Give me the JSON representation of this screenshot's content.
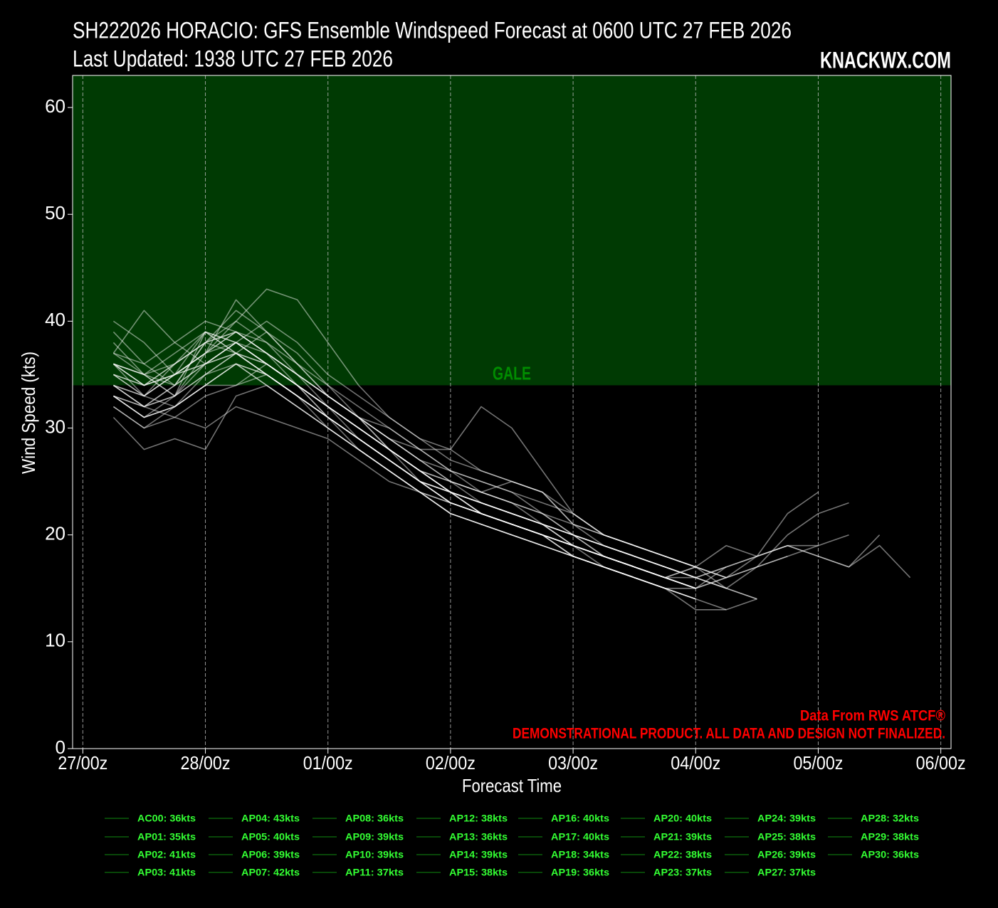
{
  "chart_data": {
    "type": "line",
    "title": "SH222026 HORACIO: GFS Ensemble Windspeed Forecast at 0600 UTC 27 FEB 2026",
    "subtitle": "Last Updated: 1938 UTC 27 FEB 2026",
    "brand": "KNACKWX.COM",
    "xlabel": "Forecast Time",
    "ylabel": "Wind Speed (kts)",
    "threshold": {
      "value": 34,
      "label": "GALE",
      "color": "#003a03",
      "label_color": "#008c00"
    },
    "source_note": "Data From RWS ATCF®",
    "disclaimer": "DEMONSTRATIONAL PRODUCT. ALL DATA AND DESIGN NOT FINALIZED.",
    "note_color": "#ff0000",
    "line_color": "#ffffff",
    "legend_handle_color": "#0b5e0b",
    "legend_text_color": "#33ff33",
    "grid": true,
    "xlim": [
      -2,
      170
    ],
    "ylim": [
      0,
      63
    ],
    "yticks": [
      0,
      10,
      20,
      30,
      40,
      50,
      60
    ],
    "xticks": [
      {
        "value": 0,
        "label": "27/00z"
      },
      {
        "value": 24,
        "label": "28/00z"
      },
      {
        "value": 48,
        "label": "01/00z"
      },
      {
        "value": 72,
        "label": "02/00z"
      },
      {
        "value": 96,
        "label": "03/00z"
      },
      {
        "value": 120,
        "label": "04/00z"
      },
      {
        "value": 144,
        "label": "05/00z"
      },
      {
        "value": 168,
        "label": "06/00z"
      }
    ],
    "x": [
      6,
      12,
      18,
      24,
      30,
      36,
      42,
      48,
      54,
      60,
      66,
      72,
      78,
      84,
      90,
      96,
      102,
      108,
      114,
      120,
      126,
      132,
      138,
      144,
      150,
      156,
      162
    ],
    "series": [
      {
        "name": "AC00: 36kts",
        "values": [
          36,
          33,
          32,
          34,
          34,
          36,
          34,
          32,
          30,
          28,
          25,
          23,
          22,
          21,
          20,
          19,
          18,
          17,
          16,
          null,
          null,
          null,
          null,
          null,
          null,
          null,
          null
        ]
      },
      {
        "name": "AP01: 35kts",
        "values": [
          33,
          32,
          31,
          33,
          34,
          35,
          33,
          30,
          28,
          26,
          24,
          22,
          21,
          20,
          19,
          18,
          17,
          16,
          15,
          null,
          null,
          null,
          null,
          null,
          null,
          null,
          null
        ]
      },
      {
        "name": "AP02: 41kts",
        "values": [
          39,
          36,
          34,
          38,
          41,
          39,
          36,
          33,
          31,
          28,
          26,
          24,
          22,
          21,
          20,
          19,
          18,
          17,
          16,
          15,
          null,
          null,
          null,
          null,
          null,
          null,
          null
        ]
      },
      {
        "name": "AP03: 41kts",
        "values": [
          37,
          41,
          38,
          36,
          37,
          39,
          37,
          34,
          31,
          29,
          27,
          25,
          24,
          23,
          22,
          20,
          19,
          18,
          17,
          16,
          15,
          null,
          null,
          null,
          null,
          null,
          null
        ]
      },
      {
        "name": "AP04: 43kts",
        "values": [
          36,
          34,
          35,
          37,
          40,
          43,
          42,
          38,
          34,
          31,
          29,
          28,
          26,
          25,
          24,
          22,
          20,
          19,
          18,
          17,
          16,
          17,
          18,
          null,
          null,
          null,
          null
        ]
      },
      {
        "name": "AP05: 40kts",
        "values": [
          38,
          35,
          33,
          36,
          38,
          40,
          38,
          35,
          33,
          31,
          29,
          27,
          26,
          25,
          24,
          21,
          20,
          19,
          18,
          17,
          19,
          18,
          19,
          18,
          17,
          19,
          16
        ]
      },
      {
        "name": "AP06: 39kts",
        "values": [
          35,
          33,
          36,
          39,
          37,
          35,
          33,
          31,
          29,
          27,
          25,
          24,
          22,
          21,
          20,
          19,
          18,
          17,
          16,
          17,
          null,
          null,
          null,
          null,
          null,
          null,
          null
        ]
      },
      {
        "name": "AP07: 42kts",
        "values": [
          34,
          32,
          33,
          37,
          42,
          39,
          36,
          33,
          31,
          29,
          27,
          26,
          25,
          24,
          23,
          22,
          20,
          19,
          18,
          17,
          16,
          null,
          null,
          null,
          null,
          null,
          null
        ]
      },
      {
        "name": "AP08: 36kts",
        "values": [
          32,
          30,
          32,
          34,
          36,
          35,
          33,
          31,
          29,
          27,
          25,
          23,
          22,
          21,
          20,
          18,
          17,
          16,
          15,
          null,
          null,
          null,
          null,
          null,
          null,
          null,
          null
        ]
      },
      {
        "name": "AP09: 39kts",
        "values": [
          35,
          34,
          36,
          38,
          39,
          37,
          35,
          32,
          30,
          28,
          26,
          25,
          23,
          22,
          21,
          20,
          18,
          17,
          16,
          15,
          16,
          null,
          null,
          null,
          null,
          null,
          null
        ]
      },
      {
        "name": "AP10: 39kts",
        "values": [
          36,
          35,
          33,
          39,
          37,
          36,
          34,
          32,
          30,
          28,
          26,
          24,
          23,
          22,
          21,
          19,
          18,
          17,
          16,
          15,
          null,
          null,
          null,
          null,
          null,
          null,
          null
        ]
      },
      {
        "name": "AP11: 37kts",
        "values": [
          33,
          31,
          33,
          35,
          37,
          36,
          34,
          32,
          29,
          27,
          25,
          24,
          22,
          21,
          20,
          19,
          17,
          16,
          15,
          14,
          null,
          null,
          null,
          null,
          null,
          null,
          null
        ]
      },
      {
        "name": "AP12: 38kts",
        "values": [
          34,
          32,
          34,
          36,
          38,
          37,
          35,
          33,
          31,
          28,
          26,
          24,
          23,
          22,
          21,
          19,
          18,
          17,
          16,
          15,
          17,
          18,
          19,
          18,
          17,
          20,
          null
        ]
      },
      {
        "name": "AP13: 36kts",
        "values": [
          33,
          31,
          32,
          34,
          36,
          34,
          32,
          30,
          28,
          26,
          24,
          23,
          22,
          21,
          20,
          18,
          17,
          16,
          15,
          14,
          null,
          null,
          null,
          null,
          null,
          null,
          null
        ]
      },
      {
        "name": "AP14: 39kts",
        "values": [
          36,
          34,
          35,
          37,
          39,
          37,
          35,
          33,
          31,
          29,
          27,
          25,
          24,
          23,
          22,
          20,
          19,
          18,
          17,
          16,
          17,
          18,
          19,
          19,
          null,
          null,
          null
        ]
      },
      {
        "name": "AP15: 38kts",
        "values": [
          34,
          33,
          35,
          36,
          38,
          36,
          34,
          31,
          29,
          27,
          25,
          23,
          22,
          21,
          20,
          19,
          18,
          17,
          16,
          16,
          17,
          null,
          null,
          null,
          null,
          null,
          null
        ]
      },
      {
        "name": "AP16: 40kts",
        "values": [
          37,
          35,
          36,
          38,
          40,
          38,
          35,
          33,
          31,
          29,
          28,
          26,
          24,
          23,
          21,
          20,
          19,
          18,
          17,
          16,
          15,
          14,
          null,
          null,
          null,
          null,
          null
        ]
      },
      {
        "name": "AP17: 40kts",
        "values": [
          40,
          38,
          35,
          37,
          39,
          38,
          36,
          34,
          32,
          30,
          28,
          26,
          25,
          24,
          22,
          21,
          20,
          19,
          18,
          17,
          null,
          null,
          null,
          null,
          null,
          null,
          null
        ]
      },
      {
        "name": "AP18: 34kts",
        "values": [
          31,
          28,
          29,
          28,
          33,
          34,
          32,
          30,
          28,
          26,
          24,
          22,
          21,
          20,
          19,
          18,
          17,
          16,
          15,
          13,
          13,
          null,
          null,
          null,
          null,
          null,
          null
        ]
      },
      {
        "name": "AP19: 36kts",
        "values": [
          34,
          32,
          33,
          35,
          36,
          34,
          32,
          30,
          28,
          26,
          24,
          22,
          21,
          20,
          19,
          18,
          17,
          16,
          15,
          15,
          null,
          null,
          null,
          null,
          null,
          null,
          null
        ]
      },
      {
        "name": "AP20: 40kts",
        "values": [
          37,
          36,
          38,
          40,
          39,
          37,
          35,
          33,
          31,
          30,
          28,
          28,
          32,
          30,
          26,
          22,
          20,
          19,
          18,
          17,
          16,
          17,
          18,
          19,
          20,
          null,
          null
        ]
      },
      {
        "name": "AP21: 39kts",
        "values": [
          36,
          35,
          37,
          39,
          38,
          36,
          34,
          32,
          30,
          28,
          26,
          25,
          24,
          25,
          24,
          21,
          19,
          18,
          17,
          16,
          15,
          17,
          20,
          22,
          23,
          null,
          null
        ]
      },
      {
        "name": "AP22: 38kts",
        "values": [
          35,
          34,
          36,
          38,
          37,
          35,
          33,
          31,
          29,
          27,
          25,
          24,
          23,
          22,
          21,
          20,
          18,
          17,
          16,
          15,
          16,
          18,
          22,
          24,
          null,
          null,
          null
        ]
      },
      {
        "name": "AP23: 37kts",
        "values": [
          33,
          32,
          34,
          36,
          37,
          35,
          33,
          31,
          28,
          26,
          24,
          22,
          21,
          20,
          19,
          18,
          17,
          16,
          15,
          14,
          13,
          14,
          null,
          null,
          null,
          null,
          null
        ]
      },
      {
        "name": "AP24: 39kts",
        "values": [
          36,
          34,
          35,
          39,
          38,
          36,
          34,
          32,
          30,
          28,
          26,
          24,
          22,
          21,
          20,
          19,
          18,
          17,
          16,
          17,
          15,
          14,
          null,
          null,
          null,
          null,
          null
        ]
      },
      {
        "name": "AP25: 38kts",
        "values": [
          34,
          33,
          35,
          37,
          38,
          36,
          34,
          31,
          29,
          27,
          25,
          23,
          22,
          21,
          20,
          18,
          17,
          16,
          15,
          14,
          null,
          null,
          null,
          null,
          null,
          null,
          null
        ]
      },
      {
        "name": "AP26: 39kts",
        "values": [
          36,
          35,
          34,
          38,
          39,
          37,
          34,
          32,
          30,
          28,
          26,
          24,
          23,
          22,
          21,
          20,
          19,
          18,
          17,
          16,
          null,
          null,
          null,
          null,
          null,
          null,
          null
        ]
      },
      {
        "name": "AP27: 37kts",
        "values": [
          33,
          31,
          32,
          35,
          37,
          35,
          33,
          31,
          29,
          27,
          25,
          24,
          23,
          22,
          21,
          20,
          19,
          18,
          17,
          16,
          null,
          null,
          null,
          null,
          null,
          null,
          null
        ]
      },
      {
        "name": "AP28: 32kts",
        "values": [
          32,
          30,
          31,
          30,
          32,
          31,
          30,
          29,
          27,
          25,
          24,
          23,
          22,
          21,
          20,
          19,
          18,
          17,
          16,
          15,
          null,
          null,
          null,
          null,
          null,
          null,
          null
        ]
      },
      {
        "name": "AP29: 38kts",
        "values": [
          35,
          33,
          35,
          36,
          38,
          36,
          34,
          32,
          30,
          28,
          26,
          24,
          23,
          22,
          21,
          19,
          18,
          17,
          16,
          15,
          null,
          null,
          null,
          null,
          null,
          null,
          null
        ]
      },
      {
        "name": "AP30: 36kts",
        "values": [
          33,
          31,
          32,
          34,
          36,
          35,
          33,
          31,
          29,
          27,
          25,
          23,
          22,
          21,
          20,
          19,
          18,
          17,
          16,
          15,
          null,
          null,
          null,
          null,
          null,
          null,
          null
        ]
      }
    ]
  }
}
